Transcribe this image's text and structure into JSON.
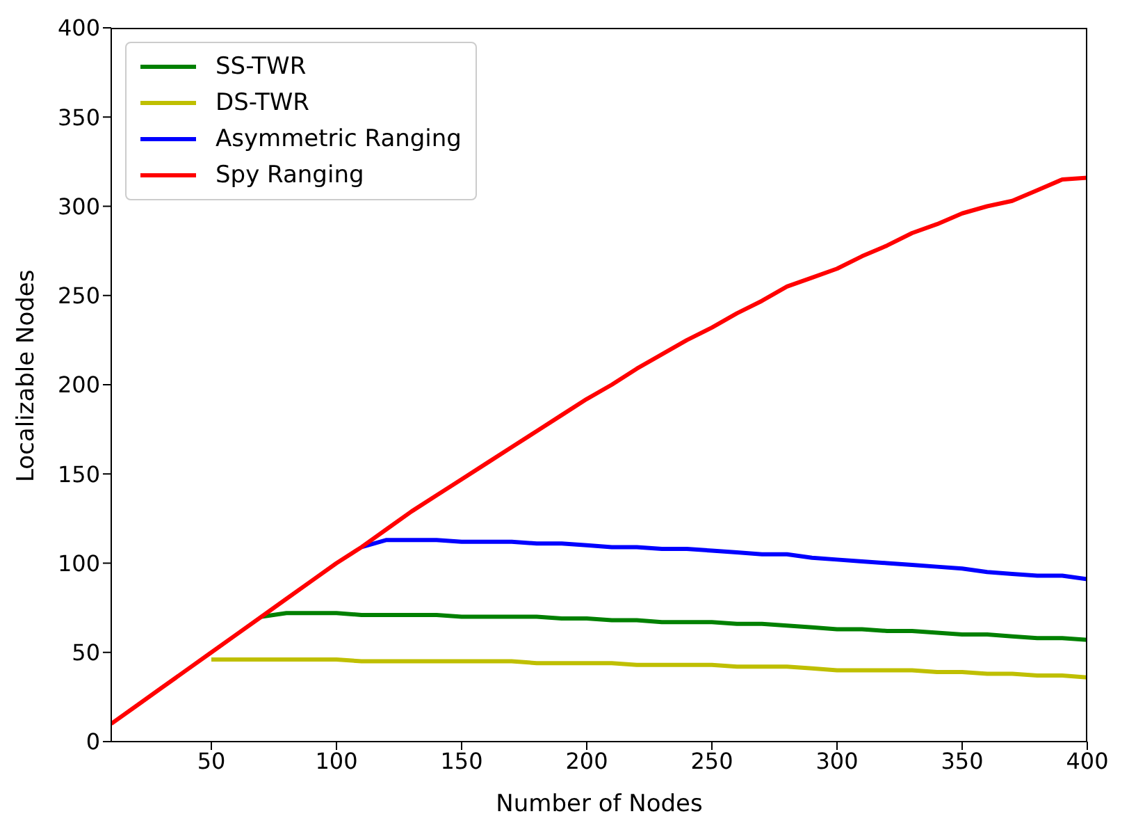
{
  "chart_data": {
    "type": "line",
    "xlabel": "Number of Nodes",
    "ylabel": "Localizable Nodes",
    "x": [
      10,
      20,
      30,
      40,
      50,
      60,
      70,
      80,
      90,
      100,
      110,
      120,
      130,
      140,
      150,
      160,
      170,
      180,
      190,
      200,
      210,
      220,
      230,
      240,
      250,
      260,
      270,
      280,
      290,
      300,
      310,
      320,
      330,
      340,
      350,
      360,
      370,
      380,
      390,
      400
    ],
    "series": [
      {
        "name": "SS-TWR",
        "color": "#008000",
        "values": [
          null,
          null,
          null,
          null,
          null,
          null,
          70,
          72,
          72,
          72,
          71,
          71,
          71,
          71,
          70,
          70,
          70,
          70,
          69,
          69,
          68,
          68,
          67,
          67,
          67,
          66,
          66,
          65,
          64,
          63,
          63,
          62,
          62,
          61,
          60,
          60,
          59,
          58,
          58,
          57
        ]
      },
      {
        "name": "DS-TWR",
        "color": "#bfbf00",
        "values": [
          null,
          null,
          null,
          null,
          46,
          46,
          46,
          46,
          46,
          46,
          45,
          45,
          45,
          45,
          45,
          45,
          45,
          44,
          44,
          44,
          44,
          43,
          43,
          43,
          43,
          42,
          42,
          42,
          41,
          40,
          40,
          40,
          40,
          39,
          39,
          38,
          38,
          37,
          37,
          36
        ]
      },
      {
        "name": "Asymmetric Ranging",
        "color": "#0000ff",
        "values": [
          null,
          null,
          null,
          null,
          null,
          null,
          null,
          null,
          null,
          null,
          109,
          113,
          113,
          113,
          112,
          112,
          112,
          111,
          111,
          110,
          109,
          109,
          108,
          108,
          107,
          106,
          105,
          105,
          103,
          102,
          101,
          100,
          99,
          98,
          97,
          95,
          94,
          93,
          93,
          91
        ]
      },
      {
        "name": "Spy Ranging",
        "color": "#ff0000",
        "values": [
          10,
          20,
          30,
          40,
          50,
          60,
          70,
          80,
          90,
          100,
          109,
          119,
          129,
          138,
          147,
          156,
          165,
          174,
          183,
          192,
          200,
          209,
          217,
          225,
          232,
          240,
          247,
          255,
          260,
          265,
          272,
          278,
          285,
          290,
          296,
          300,
          303,
          309,
          315,
          316
        ]
      }
    ],
    "xlim": [
      10,
      400
    ],
    "xticks": [
      50,
      100,
      150,
      200,
      250,
      300,
      350,
      400
    ],
    "ylim": [
      0,
      400
    ],
    "yticks": [
      0,
      50,
      100,
      150,
      200,
      250,
      300,
      350,
      400
    ],
    "legend": "top left",
    "grid": false,
    "marker": "none",
    "line_style": "solid"
  }
}
